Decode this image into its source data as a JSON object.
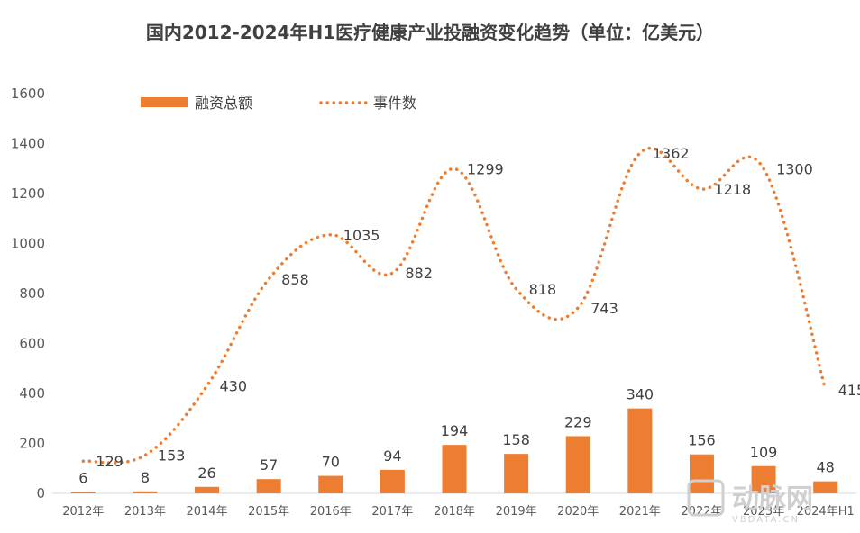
{
  "chart_data": {
    "type": "bar+line",
    "title": "国内2012-2024年H1医疗健康产业投融资变化趋势（单位：亿美元）",
    "categories": [
      "2012年",
      "2013年",
      "2014年",
      "2015年",
      "2016年",
      "2017年",
      "2018年",
      "2019年",
      "2020年",
      "2021年",
      "2022年",
      "2023年",
      "2024年H1"
    ],
    "series": [
      {
        "name": "融资总额",
        "type": "bar",
        "color": "#ED7D31",
        "values": [
          6,
          8,
          26,
          57,
          70,
          94,
          194,
          158,
          229,
          340,
          156,
          109,
          48
        ]
      },
      {
        "name": "事件数",
        "type": "line",
        "style": "dotted",
        "color": "#ED7D31",
        "values": [
          129,
          153,
          430,
          858,
          1035,
          882,
          1299,
          818,
          743,
          1362,
          1218,
          1300,
          415
        ]
      }
    ],
    "ylim": [
      0,
      1600
    ],
    "yticks": [
      0,
      200,
      400,
      600,
      800,
      1000,
      1200,
      1400,
      1600
    ],
    "grid": false,
    "legend": "top-left"
  },
  "watermark": {
    "text": "动脉网",
    "sub": "VBDATA.CN"
  }
}
